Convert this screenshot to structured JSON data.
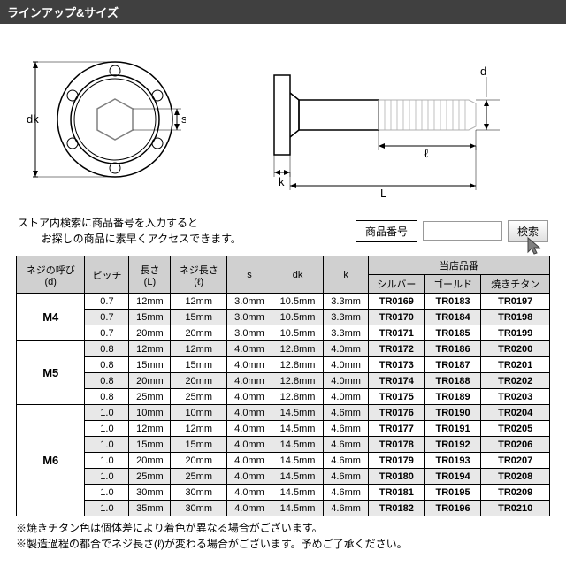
{
  "header": {
    "title": "ラインアップ&サイズ"
  },
  "diagram": {
    "labels": {
      "dk": "dk",
      "s": "s",
      "k": "k",
      "L": "L",
      "l": "ℓ",
      "d": "d"
    },
    "colors": {
      "line": "#000000",
      "hex": "#808080",
      "thread": "#c0c0c0"
    }
  },
  "search": {
    "text_line1": "ストア内検索に商品番号を入力すると",
    "text_line2": "お探しの商品に素早くアクセスできます。",
    "label": "商品番号",
    "button": "検索"
  },
  "table": {
    "headers": {
      "thread": "ネジの呼び\n(d)",
      "pitch": "ピッチ",
      "length_L": "長さ\n(L)",
      "thread_length": "ネジ長さ\n(ℓ)",
      "s": "s",
      "dk": "dk",
      "k": "k",
      "shop_code": "当店品番",
      "silver": "シルバー",
      "gold": "ゴールド",
      "titan": "焼きチタン"
    },
    "groups": [
      {
        "name": "M4",
        "rows": [
          {
            "pitch": "0.7",
            "L": "12mm",
            "l": "12mm",
            "s": "3.0mm",
            "dk": "10.5mm",
            "k": "3.3mm",
            "silver": "TR0169",
            "gold": "TR0183",
            "titan": "TR0197",
            "shaded": false
          },
          {
            "pitch": "0.7",
            "L": "15mm",
            "l": "15mm",
            "s": "3.0mm",
            "dk": "10.5mm",
            "k": "3.3mm",
            "silver": "TR0170",
            "gold": "TR0184",
            "titan": "TR0198",
            "shaded": true
          },
          {
            "pitch": "0.7",
            "L": "20mm",
            "l": "20mm",
            "s": "3.0mm",
            "dk": "10.5mm",
            "k": "3.3mm",
            "silver": "TR0171",
            "gold": "TR0185",
            "titan": "TR0199",
            "shaded": false
          }
        ]
      },
      {
        "name": "M5",
        "rows": [
          {
            "pitch": "0.8",
            "L": "12mm",
            "l": "12mm",
            "s": "4.0mm",
            "dk": "12.8mm",
            "k": "4.0mm",
            "silver": "TR0172",
            "gold": "TR0186",
            "titan": "TR0200",
            "shaded": true
          },
          {
            "pitch": "0.8",
            "L": "15mm",
            "l": "15mm",
            "s": "4.0mm",
            "dk": "12.8mm",
            "k": "4.0mm",
            "silver": "TR0173",
            "gold": "TR0187",
            "titan": "TR0201",
            "shaded": false
          },
          {
            "pitch": "0.8",
            "L": "20mm",
            "l": "20mm",
            "s": "4.0mm",
            "dk": "12.8mm",
            "k": "4.0mm",
            "silver": "TR0174",
            "gold": "TR0188",
            "titan": "TR0202",
            "shaded": true
          },
          {
            "pitch": "0.8",
            "L": "25mm",
            "l": "25mm",
            "s": "4.0mm",
            "dk": "12.8mm",
            "k": "4.0mm",
            "silver": "TR0175",
            "gold": "TR0189",
            "titan": "TR0203",
            "shaded": false
          }
        ]
      },
      {
        "name": "M6",
        "rows": [
          {
            "pitch": "1.0",
            "L": "10mm",
            "l": "10mm",
            "s": "4.0mm",
            "dk": "14.5mm",
            "k": "4.6mm",
            "silver": "TR0176",
            "gold": "TR0190",
            "titan": "TR0204",
            "shaded": true
          },
          {
            "pitch": "1.0",
            "L": "12mm",
            "l": "12mm",
            "s": "4.0mm",
            "dk": "14.5mm",
            "k": "4.6mm",
            "silver": "TR0177",
            "gold": "TR0191",
            "titan": "TR0205",
            "shaded": false
          },
          {
            "pitch": "1.0",
            "L": "15mm",
            "l": "15mm",
            "s": "4.0mm",
            "dk": "14.5mm",
            "k": "4.6mm",
            "silver": "TR0178",
            "gold": "TR0192",
            "titan": "TR0206",
            "shaded": true
          },
          {
            "pitch": "1.0",
            "L": "20mm",
            "l": "20mm",
            "s": "4.0mm",
            "dk": "14.5mm",
            "k": "4.6mm",
            "silver": "TR0179",
            "gold": "TR0193",
            "titan": "TR0207",
            "shaded": false
          },
          {
            "pitch": "1.0",
            "L": "25mm",
            "l": "25mm",
            "s": "4.0mm",
            "dk": "14.5mm",
            "k": "4.6mm",
            "silver": "TR0180",
            "gold": "TR0194",
            "titan": "TR0208",
            "shaded": true
          },
          {
            "pitch": "1.0",
            "L": "30mm",
            "l": "30mm",
            "s": "4.0mm",
            "dk": "14.5mm",
            "k": "4.6mm",
            "silver": "TR0181",
            "gold": "TR0195",
            "titan": "TR0209",
            "shaded": false
          },
          {
            "pitch": "1.0",
            "L": "35mm",
            "l": "30mm",
            "s": "4.0mm",
            "dk": "14.5mm",
            "k": "4.6mm",
            "silver": "TR0182",
            "gold": "TR0196",
            "titan": "TR0210",
            "shaded": true
          }
        ]
      }
    ]
  },
  "footnotes": {
    "line1": "※焼きチタン色は個体差により着色が異なる場合がございます。",
    "line2": "※製造過程の都合でネジ長さ(ℓ)が変わる場合がございます。予めご了承ください。"
  }
}
